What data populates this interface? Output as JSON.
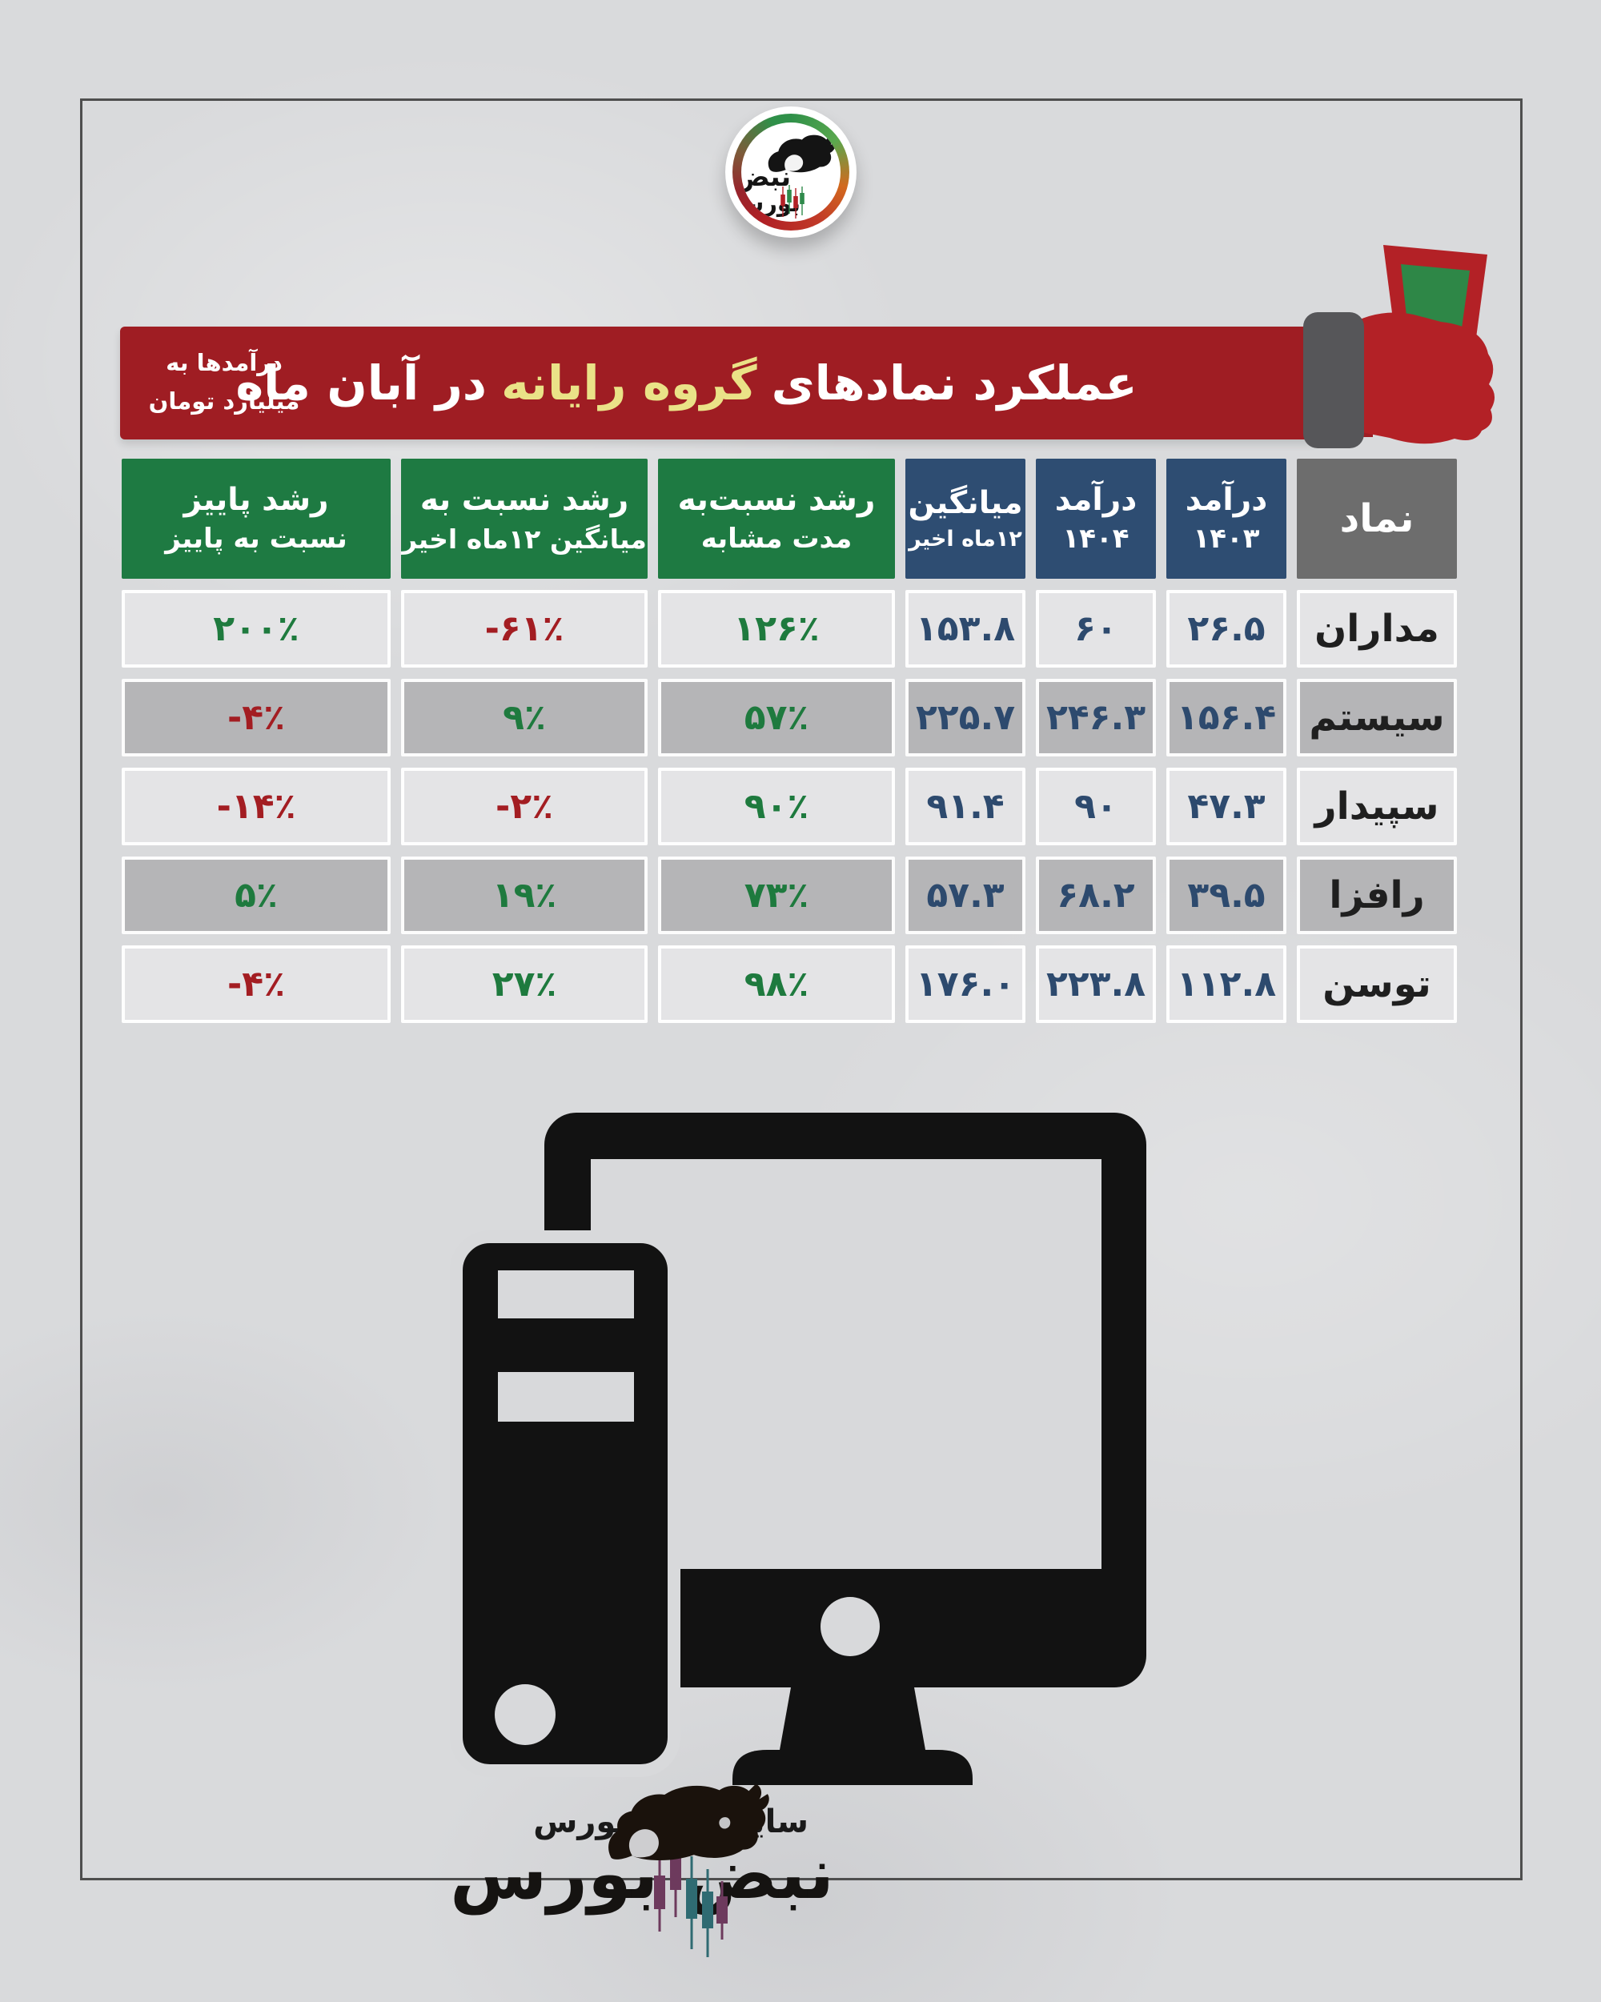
{
  "header_banner": {
    "title_prefix": "عملکرد نمادهای",
    "title_highlight": "گروه رایانه",
    "title_suffix": "در آبان ماه",
    "note_line1": "درآمدها به",
    "note_line2": "میلیارد تومان"
  },
  "brand_top": {
    "word1": "نبض",
    "word2": "بورس"
  },
  "brand_bottom": {
    "site_label": "سایت نبض بورس",
    "name": "نبض بورس"
  },
  "table": {
    "headers": [
      {
        "line1": "نماد",
        "line2": ""
      },
      {
        "line1": "درآمد",
        "line2": "۱۴۰۳"
      },
      {
        "line1": "درآمد",
        "line2": "۱۴۰۴"
      },
      {
        "line1": "میانگین",
        "line2": "۱۲ماه اخیر"
      },
      {
        "line1": "رشد نسبت‌به",
        "line2": "مدت مشابه"
      },
      {
        "line1": "رشد نسبت به",
        "line2": "میانگین ۱۲ماه اخیر"
      },
      {
        "line1": "رشد پاییز",
        "line2": "نسبت به پاییز"
      }
    ],
    "rows": [
      {
        "symbol": "مداران",
        "values": [
          "۲۶.۵",
          "۶۰",
          "۱۵۳.۸",
          "۱۲۶٪",
          "-۶۱٪",
          "۲۰۰٪"
        ]
      },
      {
        "symbol": "سیستم",
        "values": [
          "۱۵۶.۴",
          "۲۴۶.۳",
          "۲۲۵.۷",
          "۵۷٪",
          "۹٪",
          "-۴٪"
        ]
      },
      {
        "symbol": "سپیدار",
        "values": [
          "۴۷.۳",
          "۹۰",
          "۹۱.۴",
          "۹۰٪",
          "-۲٪",
          "-۱۴٪"
        ]
      },
      {
        "symbol": "رافزا",
        "values": [
          "۳۹.۵",
          "۶۸.۲",
          "۵۷.۳",
          "۷۳٪",
          "۱۹٪",
          "۵٪"
        ]
      },
      {
        "symbol": "توسن",
        "values": [
          "۱۱۲.۸",
          "۲۲۳.۸",
          "۱۷۶.۰",
          "۹۸٪",
          "۲۷٪",
          "-۴٪"
        ]
      }
    ]
  },
  "icons": {
    "money_fist": "fist-holding-money-icon",
    "computer": "desktop-computer-icon",
    "brand_bull_top": "bull-bear-logo-icon",
    "brand_bull_bottom": "bull-silhouette-icon",
    "candles": "candlestick-chart-icon"
  },
  "colors": {
    "banner_red": "#9f1d23",
    "fist_red": "#b32126",
    "money_green": "#2e8747",
    "header_green": "#1e7a42",
    "header_navy": "#2e4d72",
    "header_gray": "#6d6d6d",
    "row_gray": "#b5b5b7",
    "row_light": "#e4e4e6",
    "positive_green": "#1e7a3e",
    "negative_red": "#a31d22",
    "value_navy": "#2d4a6e",
    "highlight_yellow": "#eae287"
  },
  "chart_data": {
    "type": "table",
    "title": "عملکرد نمادهای گروه رایانه در آبان ماه",
    "unit": "درآمدها به میلیارد تومان",
    "columns": [
      "نماد",
      "درآمد ۱۴۰۳",
      "درآمد ۱۴۰۴",
      "میانگین ۱۲ماه اخیر",
      "رشد نسبت‌به مدت مشابه",
      "رشد نسبت به میانگین ۱۲ماه اخیر",
      "رشد پاییز نسبت به پاییز"
    ],
    "rows": [
      {
        "symbol": "مداران",
        "income_1403": 26.5,
        "income_1404": 60,
        "avg_12m": 153.8,
        "growth_vs_same_period_pct": 126,
        "growth_vs_12m_avg_pct": -61,
        "fall_vs_fall_growth_pct": 200
      },
      {
        "symbol": "سیستم",
        "income_1403": 156.4,
        "income_1404": 246.3,
        "avg_12m": 225.7,
        "growth_vs_same_period_pct": 57,
        "growth_vs_12m_avg_pct": 9,
        "fall_vs_fall_growth_pct": -4
      },
      {
        "symbol": "سپیدار",
        "income_1403": 47.3,
        "income_1404": 90,
        "avg_12m": 91.4,
        "growth_vs_same_period_pct": 90,
        "growth_vs_12m_avg_pct": -2,
        "fall_vs_fall_growth_pct": -14
      },
      {
        "symbol": "رافزا",
        "income_1403": 39.5,
        "income_1404": 68.2,
        "avg_12m": 57.3,
        "growth_vs_same_period_pct": 73,
        "growth_vs_12m_avg_pct": 19,
        "fall_vs_fall_growth_pct": 5
      },
      {
        "symbol": "توسن",
        "income_1403": 112.8,
        "income_1404": 223.8,
        "avg_12m": 176.0,
        "growth_vs_same_period_pct": 98,
        "growth_vs_12m_avg_pct": 27,
        "fall_vs_fall_growth_pct": -4
      }
    ]
  }
}
